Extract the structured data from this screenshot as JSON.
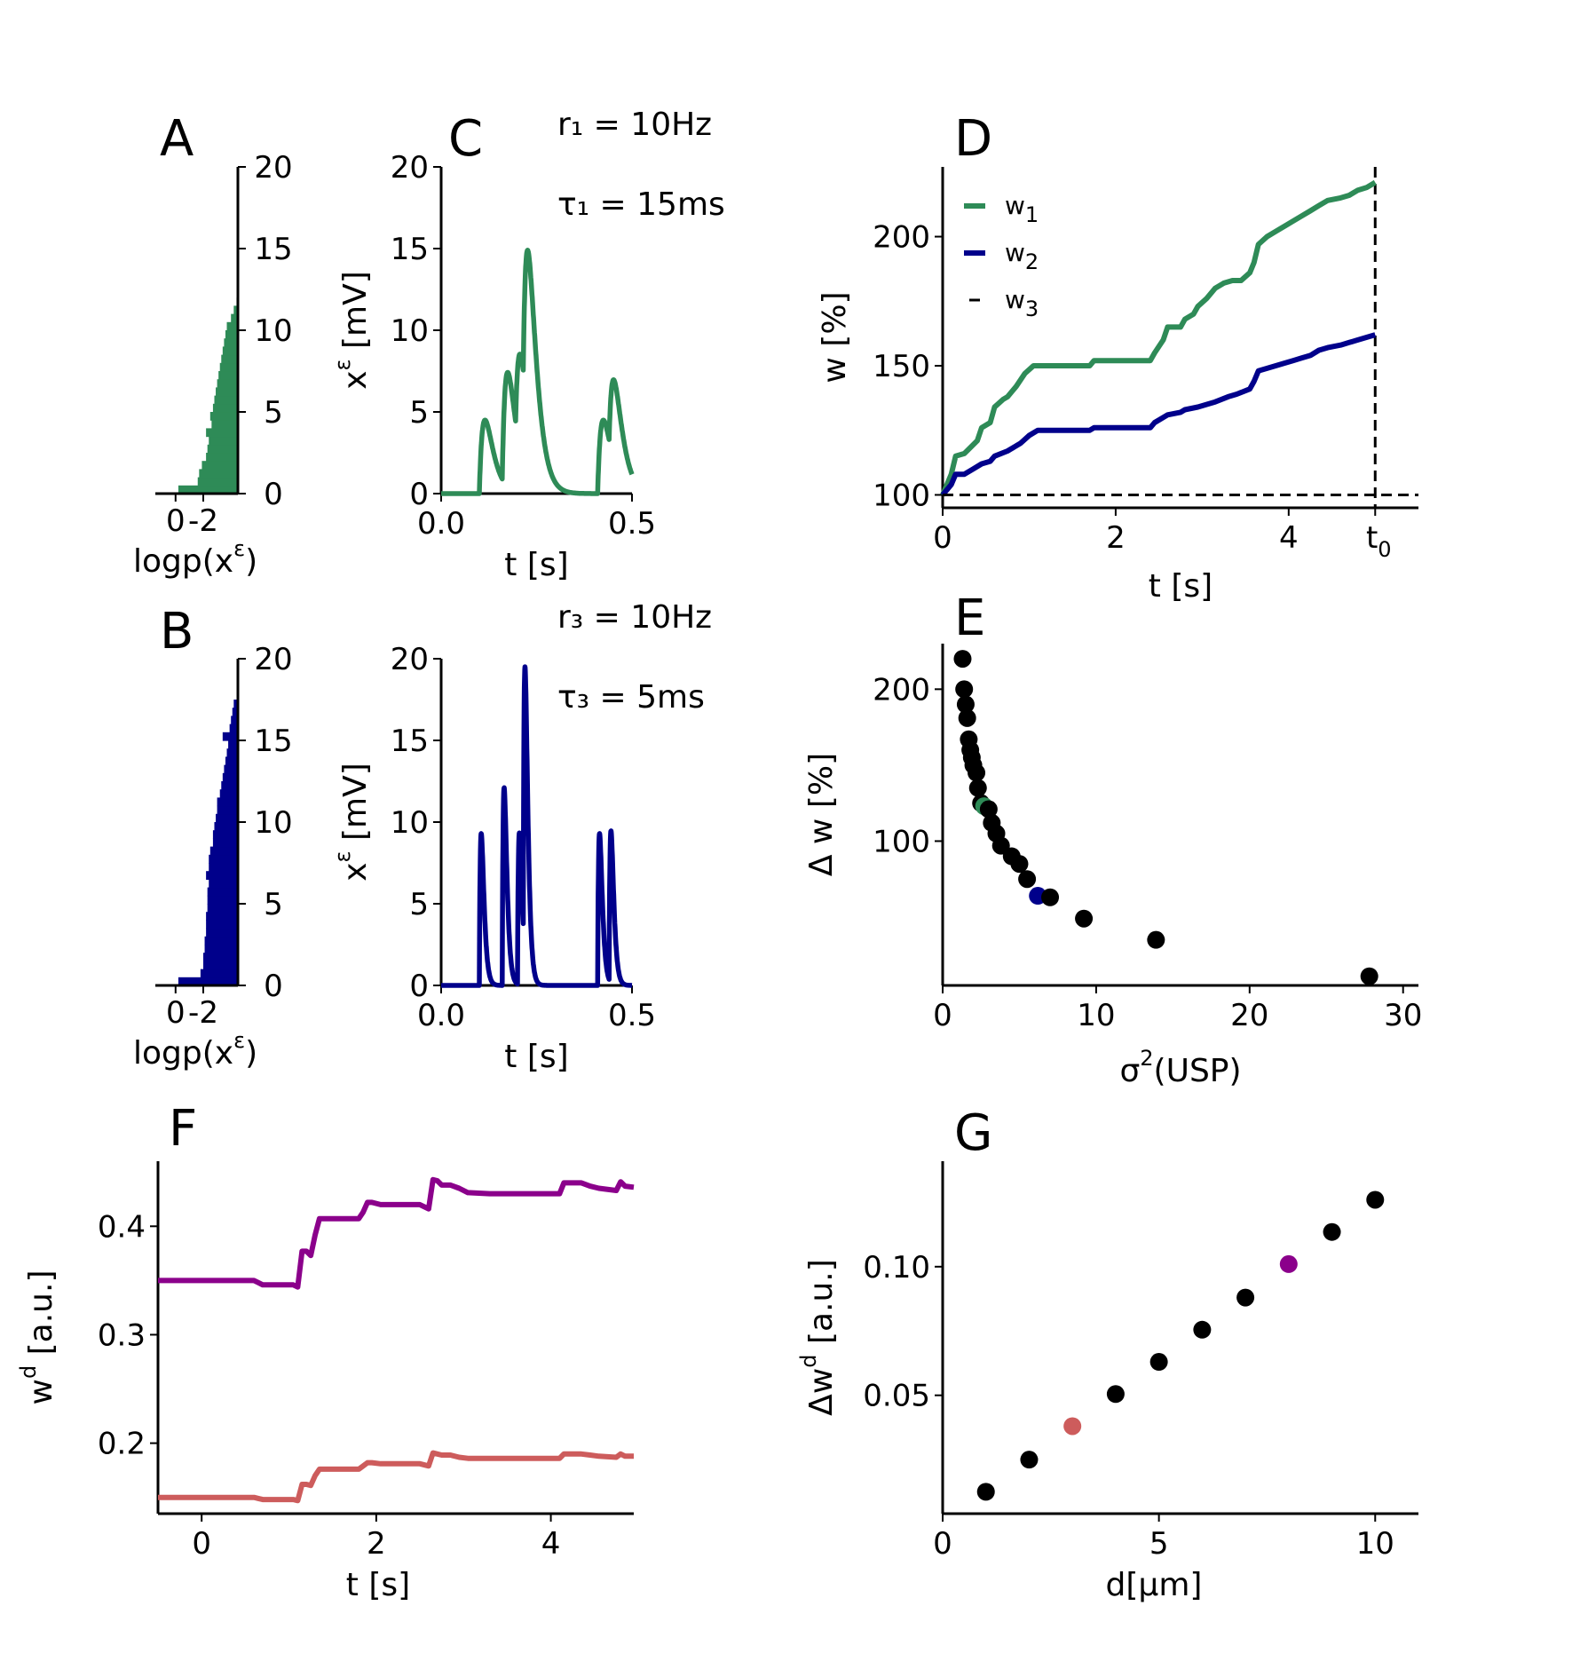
{
  "colors": {
    "green": "#2e8b57",
    "navy": "#00008b",
    "purple": "#8b008b",
    "salmon": "#cd5c5c",
    "black": "#000000"
  },
  "panels": {
    "A": {
      "letter": "A"
    },
    "B": {
      "letter": "B"
    },
    "C": {
      "letter": "C"
    },
    "D": {
      "letter": "D"
    },
    "E": {
      "letter": "E"
    },
    "F": {
      "letter": "F"
    },
    "G": {
      "letter": "G"
    }
  },
  "annotations": {
    "r1": "r₁ = 10Hz",
    "tau1": "τ₁ = 15ms",
    "r3": "r₃ = 10Hz",
    "tau3": "τ₃ = 5ms"
  },
  "chart_data": [
    {
      "id": "A",
      "type": "bar",
      "orientation": "horizontal-histogram",
      "xlabel": "logp(x",
      "xlabel_sup": "ε",
      "xlabel_end": ")",
      "xticks": [
        "0",
        "-2"
      ],
      "yticks": [
        "0",
        "5",
        "10",
        "15",
        "20"
      ],
      "ylim": [
        0,
        20
      ],
      "y_bins": [
        0.0,
        0.5,
        1.0,
        1.5,
        2.0,
        2.5,
        3.0,
        3.5,
        4.0,
        4.5,
        5.0,
        5.5,
        6.0,
        6.5,
        7.0,
        7.5,
        8.0,
        8.5,
        9.0,
        9.5,
        10.0,
        10.5,
        11.0,
        11.5,
        12.0
      ],
      "values": [
        -0.2,
        -1.6,
        -1.7,
        -1.9,
        -2.2,
        -2.3,
        -2.4,
        -2.2,
        -2.6,
        -2.5,
        -2.7,
        -2.8,
        -2.9,
        -3.0,
        -3.1,
        -3.2,
        -3.3,
        -3.4,
        -3.5,
        -3.6,
        -3.7,
        -4.0,
        -4.2,
        -4.4,
        -4.5
      ],
      "color": "#2e8b57"
    },
    {
      "id": "B",
      "type": "bar",
      "orientation": "horizontal-histogram",
      "xlabel": "logp(x",
      "xlabel_sup": "ε",
      "xlabel_end": ")",
      "xticks": [
        "0",
        "-2"
      ],
      "yticks": [
        "0",
        "5",
        "10",
        "15",
        "20"
      ],
      "ylim": [
        0,
        20
      ],
      "y_bins": [
        0.0,
        0.5,
        1.0,
        1.5,
        2.0,
        2.5,
        3.0,
        3.5,
        4.0,
        4.5,
        5.0,
        5.5,
        6.0,
        6.5,
        7.0,
        7.5,
        8.0,
        8.5,
        9.0,
        9.5,
        10.0,
        10.5,
        11.0,
        11.5,
        12.0,
        12.5,
        13.0,
        13.5,
        14.0,
        14.5,
        15.0,
        15.5,
        16.0,
        16.5,
        17.0
      ],
      "values": [
        -0.2,
        -1.8,
        -2.0,
        -2.0,
        -2.1,
        -2.1,
        -2.2,
        -2.2,
        -2.2,
        -2.3,
        -2.3,
        -2.3,
        -2.4,
        -2.2,
        -2.4,
        -2.4,
        -2.5,
        -2.7,
        -2.7,
        -2.8,
        -2.9,
        -3.0,
        -3.0,
        -3.2,
        -3.3,
        -3.4,
        -3.5,
        -3.6,
        -3.7,
        -3.8,
        -3.4,
        -3.9,
        -4.0,
        -4.1,
        -4.2
      ],
      "color": "#00008b"
    },
    {
      "id": "C",
      "type": "line",
      "xlabel": "t [s]",
      "ylabel": "x",
      "ylabel_sup": "ε",
      "ylabel_end": " [mV]",
      "xticks": [
        "0.0",
        "0.5"
      ],
      "yticks": [
        "0",
        "5",
        "10",
        "15",
        "20"
      ],
      "xlim": [
        0,
        0.5
      ],
      "ylim": [
        0,
        20
      ],
      "pulses": [
        {
          "t": 0.1,
          "a": 4.5
        },
        {
          "t": 0.16,
          "a": 7.0
        },
        {
          "t": 0.195,
          "a": 6.0
        },
        {
          "t": 0.215,
          "a": 10.0
        },
        {
          "t": 0.41,
          "a": 4.5
        },
        {
          "t": 0.44,
          "a": 5.0
        }
      ],
      "tau_ms": 15,
      "color": "#2e8b57"
    },
    {
      "id": "C2",
      "type": "line",
      "xlabel": "t [s]",
      "ylabel": "x",
      "ylabel_sup": "ε",
      "ylabel_end": " [mV]",
      "xticks": [
        "0.0",
        "0.5"
      ],
      "yticks": [
        "0",
        "5",
        "10",
        "15",
        "20"
      ],
      "xlim": [
        0,
        0.5
      ],
      "ylim": [
        0,
        20
      ],
      "pulses": [
        {
          "t": 0.1,
          "a": 9.3
        },
        {
          "t": 0.16,
          "a": 12.1
        },
        {
          "t": 0.2,
          "a": 9.3
        },
        {
          "t": 0.215,
          "a": 17.6
        },
        {
          "t": 0.41,
          "a": 9.3
        },
        {
          "t": 0.44,
          "a": 9.3
        }
      ],
      "tau_ms": 5,
      "color": "#00008b"
    },
    {
      "id": "D",
      "type": "line",
      "xlabel": "t [s]",
      "ylabel": "w [%]",
      "xticks": [
        "0",
        "2",
        "4"
      ],
      "xtick_t0": "t",
      "xtick_t0_sub": "0",
      "yticks": [
        "100",
        "150",
        "200"
      ],
      "xlim": [
        0,
        5.5
      ],
      "ylim": [
        95,
        227
      ],
      "legend": [
        {
          "name": "w",
          "sub": "1",
          "color": "#2e8b57",
          "style": "solid"
        },
        {
          "name": "w",
          "sub": "2",
          "color": "#00008b",
          "style": "solid"
        },
        {
          "name": "w",
          "sub": "3",
          "color": "#000000",
          "style": "dashed"
        }
      ],
      "legend_loc": "upper-left",
      "t0_line": 5.0,
      "series": [
        {
          "name": "w₁",
          "color": "#2e8b57",
          "x": [
            0,
            0.1,
            0.15,
            0.25,
            0.4,
            0.45,
            0.55,
            0.6,
            0.7,
            0.75,
            0.85,
            0.95,
            1.05,
            1.1,
            1.7,
            1.75,
            2.4,
            2.45,
            2.55,
            2.6,
            2.75,
            2.8,
            2.9,
            2.95,
            3.05,
            3.15,
            3.25,
            3.35,
            3.45,
            3.55,
            3.6,
            3.65,
            3.75,
            3.85,
            3.95,
            4.05,
            4.15,
            4.25,
            4.35,
            4.45,
            4.6,
            4.7,
            4.8,
            4.9,
            5.0
          ],
          "y": [
            100,
            108,
            115,
            116,
            121,
            126,
            128,
            134,
            137,
            138,
            142,
            147,
            150,
            150,
            150,
            152,
            152,
            155,
            160,
            165,
            165,
            168,
            170,
            173,
            176,
            180,
            182,
            183,
            183,
            186,
            190,
            197,
            200,
            202,
            204,
            206,
            208,
            210,
            212,
            214,
            215,
            216,
            218,
            219,
            221
          ]
        },
        {
          "name": "w₂",
          "color": "#00008b",
          "x": [
            0,
            0.1,
            0.15,
            0.25,
            0.35,
            0.45,
            0.55,
            0.6,
            0.75,
            0.9,
            1.0,
            1.1,
            1.7,
            1.75,
            2.4,
            2.45,
            2.6,
            2.75,
            2.8,
            2.95,
            3.05,
            3.15,
            3.3,
            3.4,
            3.55,
            3.6,
            3.65,
            3.75,
            3.85,
            3.95,
            4.05,
            4.15,
            4.25,
            4.35,
            4.45,
            4.6,
            4.7,
            4.8,
            4.9,
            5.0
          ],
          "y": [
            100,
            104,
            108,
            108,
            110,
            112,
            113,
            115,
            117,
            120,
            123,
            125,
            125,
            126,
            126,
            128,
            131,
            132,
            133,
            134,
            135,
            136,
            138,
            139,
            141,
            144,
            148,
            149,
            150,
            151,
            152,
            153,
            154,
            156,
            157,
            158,
            159,
            160,
            161,
            162
          ]
        },
        {
          "name": "w₃",
          "color": "#000000",
          "style": "dashed",
          "x": [
            0,
            5.5
          ],
          "y": [
            100,
            100
          ]
        }
      ]
    },
    {
      "id": "E",
      "type": "scatter",
      "xlabel": "σ",
      "xlabel_sup": "2",
      "xlabel_end": "(USP)",
      "ylabel": "Δ w [%]",
      "xticks": [
        "0",
        "10",
        "20",
        "30"
      ],
      "yticks": [
        "100",
        "200"
      ],
      "xlim": [
        0,
        31
      ],
      "ylim": [
        5,
        230
      ],
      "points": [
        {
          "x": 1.3,
          "y": 220,
          "c": "#000000"
        },
        {
          "x": 1.4,
          "y": 200,
          "c": "#000000"
        },
        {
          "x": 1.5,
          "y": 190,
          "c": "#000000"
        },
        {
          "x": 1.6,
          "y": 181,
          "c": "#000000"
        },
        {
          "x": 1.7,
          "y": 167,
          "c": "#000000"
        },
        {
          "x": 1.8,
          "y": 160,
          "c": "#000000"
        },
        {
          "x": 1.9,
          "y": 155,
          "c": "#000000"
        },
        {
          "x": 2.0,
          "y": 150,
          "c": "#000000"
        },
        {
          "x": 2.2,
          "y": 145,
          "c": "#000000"
        },
        {
          "x": 2.3,
          "y": 135,
          "c": "#000000"
        },
        {
          "x": 2.5,
          "y": 125,
          "c": "#000000"
        },
        {
          "x": 2.7,
          "y": 123,
          "c": "#2e8b57"
        },
        {
          "x": 3.0,
          "y": 121,
          "c": "#000000"
        },
        {
          "x": 3.2,
          "y": 112,
          "c": "#000000"
        },
        {
          "x": 3.5,
          "y": 105,
          "c": "#000000"
        },
        {
          "x": 3.8,
          "y": 97,
          "c": "#000000"
        },
        {
          "x": 4.5,
          "y": 90,
          "c": "#000000"
        },
        {
          "x": 5.0,
          "y": 85,
          "c": "#000000"
        },
        {
          "x": 5.5,
          "y": 75,
          "c": "#000000"
        },
        {
          "x": 6.2,
          "y": 64,
          "c": "#00008b"
        },
        {
          "x": 7.0,
          "y": 63,
          "c": "#000000"
        },
        {
          "x": 9.2,
          "y": 49,
          "c": "#000000"
        },
        {
          "x": 13.9,
          "y": 35,
          "c": "#000000"
        },
        {
          "x": 27.8,
          "y": 11,
          "c": "#000000"
        }
      ]
    },
    {
      "id": "F",
      "type": "line",
      "xlabel": "t [s]",
      "ylabel": "w",
      "ylabel_sup": "d",
      "ylabel_end": " [a.u.]",
      "xticks": [
        "0",
        "2",
        "4"
      ],
      "yticks": [
        "0.2",
        "0.3",
        "0.4"
      ],
      "xlim": [
        -0.5,
        4.95
      ],
      "ylim": [
        0.135,
        0.46
      ],
      "series": [
        {
          "name": "purple",
          "color": "#8b008b",
          "x": [
            -0.5,
            0.6,
            0.65,
            0.7,
            1.05,
            1.1,
            1.15,
            1.2,
            1.25,
            1.3,
            1.35,
            1.4,
            1.8,
            1.85,
            1.9,
            1.95,
            2.05,
            2.5,
            2.6,
            2.65,
            2.7,
            2.75,
            2.85,
            2.95,
            3.05,
            3.3,
            4.1,
            4.15,
            4.35,
            4.45,
            4.55,
            4.75,
            4.8,
            4.85,
            4.95
          ],
          "y": [
            0.35,
            0.35,
            0.348,
            0.346,
            0.346,
            0.344,
            0.377,
            0.377,
            0.373,
            0.392,
            0.407,
            0.407,
            0.407,
            0.413,
            0.422,
            0.422,
            0.42,
            0.42,
            0.416,
            0.443,
            0.442,
            0.438,
            0.438,
            0.435,
            0.431,
            0.43,
            0.43,
            0.44,
            0.44,
            0.437,
            0.435,
            0.433,
            0.441,
            0.437,
            0.436
          ]
        },
        {
          "name": "salmon",
          "color": "#cd5c5c",
          "x": [
            -0.5,
            0.6,
            0.65,
            0.7,
            1.05,
            1.1,
            1.15,
            1.2,
            1.25,
            1.3,
            1.35,
            1.4,
            1.8,
            1.85,
            1.9,
            1.95,
            2.05,
            2.5,
            2.6,
            2.65,
            2.7,
            2.75,
            2.85,
            2.95,
            3.05,
            3.3,
            4.1,
            4.15,
            4.35,
            4.45,
            4.55,
            4.75,
            4.8,
            4.85,
            4.95
          ],
          "y": [
            0.15,
            0.15,
            0.149,
            0.148,
            0.148,
            0.147,
            0.162,
            0.162,
            0.161,
            0.17,
            0.176,
            0.176,
            0.176,
            0.179,
            0.182,
            0.182,
            0.181,
            0.181,
            0.179,
            0.191,
            0.19,
            0.189,
            0.189,
            0.187,
            0.186,
            0.186,
            0.186,
            0.19,
            0.19,
            0.189,
            0.188,
            0.187,
            0.19,
            0.188,
            0.188
          ]
        }
      ]
    },
    {
      "id": "G",
      "type": "scatter",
      "xlabel": "d[μm]",
      "ylabel": "Δw",
      "ylabel_sup": "d",
      "ylabel_end": " [a.u.]",
      "xticks": [
        "0",
        "5",
        "10"
      ],
      "yticks": [
        "0.05",
        "0.10"
      ],
      "xlim": [
        0,
        11
      ],
      "ylim": [
        0.004,
        0.141
      ],
      "points": [
        {
          "x": 1,
          "y": 0.0125,
          "c": "#000000"
        },
        {
          "x": 2,
          "y": 0.025,
          "c": "#000000"
        },
        {
          "x": 3,
          "y": 0.038,
          "c": "#cd5c5c"
        },
        {
          "x": 4,
          "y": 0.0505,
          "c": "#000000"
        },
        {
          "x": 5,
          "y": 0.063,
          "c": "#000000"
        },
        {
          "x": 6,
          "y": 0.0755,
          "c": "#000000"
        },
        {
          "x": 7,
          "y": 0.088,
          "c": "#000000"
        },
        {
          "x": 8,
          "y": 0.101,
          "c": "#8b008b"
        },
        {
          "x": 9,
          "y": 0.1135,
          "c": "#000000"
        },
        {
          "x": 10,
          "y": 0.126,
          "c": "#000000"
        }
      ]
    }
  ]
}
